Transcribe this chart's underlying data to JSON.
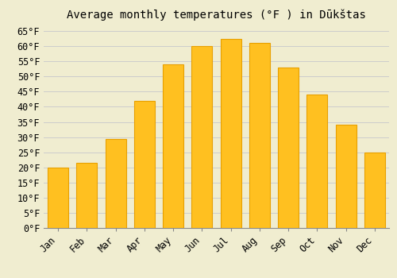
{
  "title": "Average monthly temperatures (°F ) in Dūkštas",
  "months": [
    "Jan",
    "Feb",
    "Mar",
    "Apr",
    "May",
    "Jun",
    "Jul",
    "Aug",
    "Sep",
    "Oct",
    "Nov",
    "Dec"
  ],
  "values": [
    20,
    21.5,
    29.5,
    42,
    54,
    60,
    62.5,
    61,
    53,
    44,
    34,
    25
  ],
  "bar_color": "#FFC020",
  "bar_edge_color": "#E8A000",
  "background_color": "#F0EDD0",
  "ylim": [
    0,
    67
  ],
  "yticks": [
    0,
    5,
    10,
    15,
    20,
    25,
    30,
    35,
    40,
    45,
    50,
    55,
    60,
    65
  ],
  "grid_color": "#CCCCCC",
  "title_fontsize": 10,
  "tick_fontsize": 8.5
}
